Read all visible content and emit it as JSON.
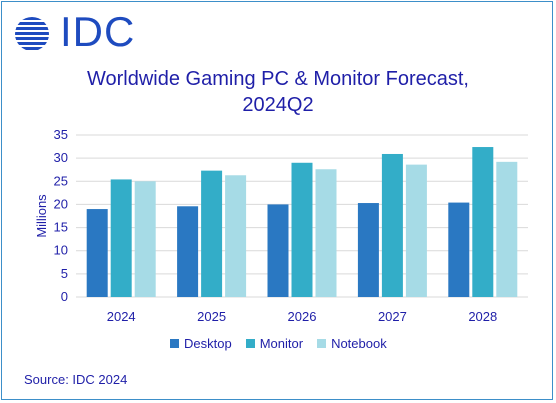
{
  "logo": {
    "text": "IDC",
    "icon": "globe-icon"
  },
  "chart_data": {
    "type": "bar",
    "title_line1": "Worldwide Gaming PC & Monitor Forecast,",
    "title_line2": "2024Q2",
    "ylabel": "Millions",
    "xlabel": "",
    "categories": [
      "2024",
      "2025",
      "2026",
      "2027",
      "2028"
    ],
    "ylim": [
      0,
      35
    ],
    "yticks": [
      "0",
      "5",
      "10",
      "15",
      "20",
      "25",
      "30",
      "35"
    ],
    "grid": true,
    "legend_position": "bottom",
    "series": [
      {
        "name": "Desktop",
        "color": "#2a78c2",
        "values": [
          19.0,
          19.6,
          20.0,
          20.3,
          20.4
        ]
      },
      {
        "name": "Monitor",
        "color": "#33adc8",
        "values": [
          25.4,
          27.3,
          29.0,
          30.9,
          32.4
        ]
      },
      {
        "name": "Notebook",
        "color": "#a6dbe6",
        "values": [
          25.0,
          26.3,
          27.6,
          28.6,
          29.2
        ]
      }
    ]
  },
  "source": "Source: IDC 2024"
}
